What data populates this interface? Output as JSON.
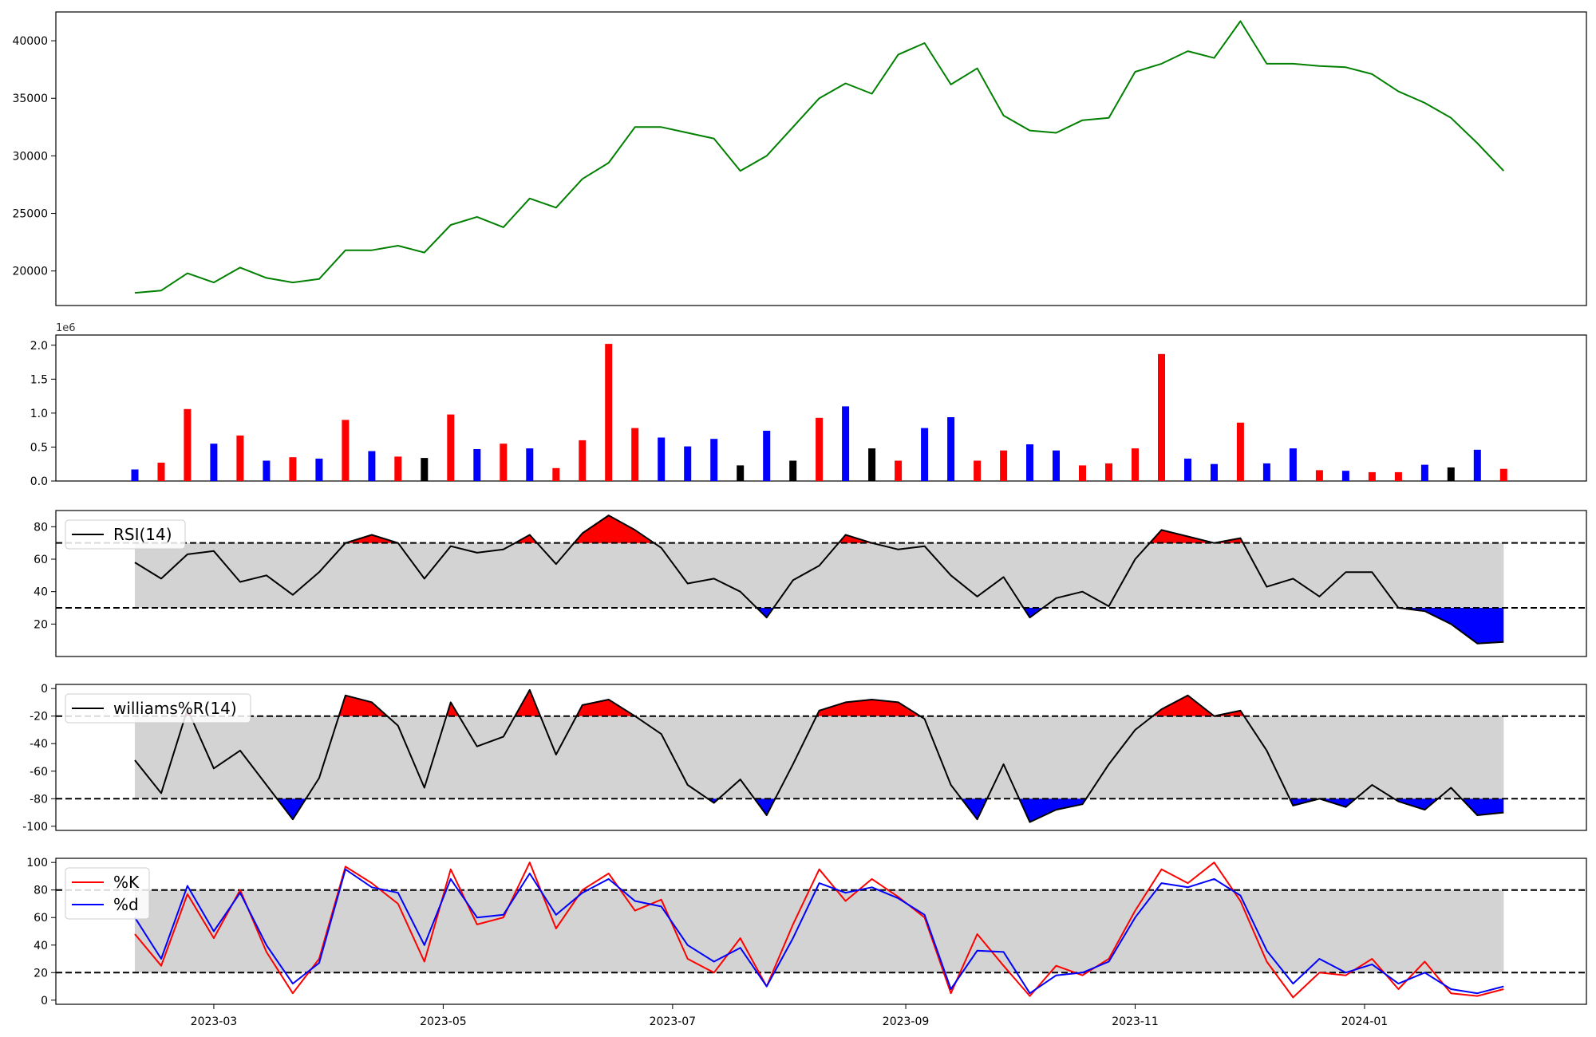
{
  "figure": {
    "x_ticks": [
      "2023-03",
      "2023-05",
      "2023-07",
      "2023-09",
      "2023-11",
      "2024-01"
    ],
    "volume_scale_label": "1e6"
  },
  "chart_data": [
    {
      "type": "line",
      "panel": "price",
      "color": "#008000",
      "xlim": [
        "2023-01-18",
        "2024-02-29"
      ],
      "ylim": [
        17000,
        42500
      ],
      "y_ticks": [
        20000,
        25000,
        30000,
        35000,
        40000
      ],
      "x": [
        "2023-02-08",
        "2023-02-15",
        "2023-02-22",
        "2023-03-01",
        "2023-03-08",
        "2023-03-15",
        "2023-03-22",
        "2023-03-29",
        "2023-04-05",
        "2023-04-12",
        "2023-04-19",
        "2023-04-26",
        "2023-05-03",
        "2023-05-10",
        "2023-05-17",
        "2023-05-24",
        "2023-05-31",
        "2023-06-07",
        "2023-06-14",
        "2023-06-21",
        "2023-06-28",
        "2023-07-05",
        "2023-07-12",
        "2023-07-19",
        "2023-07-26",
        "2023-08-02",
        "2023-08-09",
        "2023-08-16",
        "2023-08-23",
        "2023-08-30",
        "2023-09-06",
        "2023-09-13",
        "2023-09-20",
        "2023-09-27",
        "2023-10-04",
        "2023-10-11",
        "2023-10-18",
        "2023-10-25",
        "2023-11-01",
        "2023-11-08",
        "2023-11-15",
        "2023-11-22",
        "2023-11-29",
        "2023-12-06",
        "2023-12-13",
        "2023-12-20",
        "2023-12-27",
        "2024-01-03",
        "2024-01-10",
        "2024-01-17",
        "2024-01-24",
        "2024-01-31",
        "2024-02-07"
      ],
      "values": [
        18100,
        18300,
        19800,
        19000,
        20300,
        19400,
        19000,
        19300,
        21800,
        21800,
        22200,
        21600,
        24000,
        24700,
        23800,
        26300,
        25500,
        28000,
        29400,
        32500,
        32500,
        32000,
        31500,
        28700,
        30000,
        32500,
        35000,
        36300,
        35400,
        38800,
        39800,
        36200,
        37600,
        33500,
        32200,
        32000,
        33100,
        33300,
        37300,
        38000,
        39100,
        38500,
        41700,
        38000,
        38000,
        37800,
        37700,
        37100,
        35600,
        34600,
        33300,
        31100,
        28700
      ]
    },
    {
      "type": "bar",
      "panel": "volume",
      "ylim": [
        0,
        2150000
      ],
      "y_ticks": [
        0.0,
        0.5,
        1.0,
        1.5,
        2.0
      ],
      "colors": {
        "up": "#ff0000",
        "down": "#0000ff",
        "flat": "#000000"
      },
      "x": [
        "2023-02-08",
        "2023-02-15",
        "2023-02-22",
        "2023-03-01",
        "2023-03-08",
        "2023-03-15",
        "2023-03-22",
        "2023-03-29",
        "2023-04-05",
        "2023-04-12",
        "2023-04-19",
        "2023-04-26",
        "2023-05-03",
        "2023-05-10",
        "2023-05-17",
        "2023-05-24",
        "2023-05-31",
        "2023-06-07",
        "2023-06-14",
        "2023-06-21",
        "2023-06-28",
        "2023-07-05",
        "2023-07-12",
        "2023-07-19",
        "2023-07-26",
        "2023-08-02",
        "2023-08-09",
        "2023-08-16",
        "2023-08-23",
        "2023-08-30",
        "2023-09-06",
        "2023-09-13",
        "2023-09-20",
        "2023-09-27",
        "2023-10-04",
        "2023-10-11",
        "2023-10-18",
        "2023-10-25",
        "2023-11-01",
        "2023-11-08",
        "2023-11-15",
        "2023-11-22",
        "2023-11-29",
        "2023-12-06",
        "2023-12-13",
        "2023-12-20",
        "2023-12-27",
        "2024-01-03",
        "2024-01-10",
        "2024-01-17",
        "2024-01-24",
        "2024-01-31",
        "2024-02-07"
      ],
      "values": [
        170000,
        270000,
        1060000,
        550000,
        670000,
        300000,
        350000,
        330000,
        900000,
        440000,
        360000,
        340000,
        980000,
        470000,
        550000,
        480000,
        190000,
        600000,
        2020000,
        780000,
        640000,
        510000,
        620000,
        230000,
        740000,
        300000,
        930000,
        1100000,
        480000,
        300000,
        780000,
        940000,
        300000,
        450000,
        540000,
        450000,
        230000,
        260000,
        480000,
        1870000,
        330000,
        250000,
        860000,
        260000,
        480000,
        160000,
        150000,
        130000,
        130000,
        240000,
        200000,
        460000,
        180000
      ],
      "directions": [
        "down",
        "up",
        "up",
        "down",
        "up",
        "down",
        "up",
        "down",
        "up",
        "down",
        "up",
        "flat",
        "up",
        "down",
        "up",
        "down",
        "up",
        "up",
        "up",
        "up",
        "down",
        "down",
        "down",
        "flat",
        "down",
        "flat",
        "up",
        "down",
        "flat",
        "up",
        "down",
        "down",
        "up",
        "up",
        "down",
        "down",
        "up",
        "up",
        "up",
        "up",
        "down",
        "down",
        "up",
        "down",
        "down",
        "up",
        "down",
        "up",
        "up",
        "down",
        "flat",
        "down",
        "up"
      ]
    },
    {
      "type": "line",
      "panel": "rsi",
      "series": [
        {
          "name": "RSI(14)",
          "color": "#000000"
        }
      ],
      "ylim": [
        0,
        90
      ],
      "y_ticks": [
        20,
        40,
        60,
        80
      ],
      "thresholds": [
        30,
        70
      ],
      "legend": "upper-left",
      "x": [
        "2023-02-08",
        "2023-02-15",
        "2023-02-22",
        "2023-03-01",
        "2023-03-08",
        "2023-03-15",
        "2023-03-22",
        "2023-03-29",
        "2023-04-05",
        "2023-04-12",
        "2023-04-19",
        "2023-04-26",
        "2023-05-03",
        "2023-05-10",
        "2023-05-17",
        "2023-05-24",
        "2023-05-31",
        "2023-06-07",
        "2023-06-14",
        "2023-06-21",
        "2023-06-28",
        "2023-07-05",
        "2023-07-12",
        "2023-07-19",
        "2023-07-26",
        "2023-08-02",
        "2023-08-09",
        "2023-08-16",
        "2023-08-23",
        "2023-08-30",
        "2023-09-06",
        "2023-09-13",
        "2023-09-20",
        "2023-09-27",
        "2023-10-04",
        "2023-10-11",
        "2023-10-18",
        "2023-10-25",
        "2023-11-01",
        "2023-11-08",
        "2023-11-15",
        "2023-11-22",
        "2023-11-29",
        "2023-12-06",
        "2023-12-13",
        "2023-12-20",
        "2023-12-27",
        "2024-01-03",
        "2024-01-10",
        "2024-01-17",
        "2024-01-24",
        "2024-01-31",
        "2024-02-07"
      ],
      "values": [
        58,
        48,
        63,
        65,
        46,
        50,
        38,
        52,
        70,
        75,
        70,
        48,
        68,
        64,
        66,
        75,
        57,
        76,
        87,
        78,
        67,
        45,
        48,
        40,
        24,
        47,
        56,
        75,
        70,
        66,
        68,
        50,
        37,
        49,
        24,
        36,
        40,
        31,
        60,
        78,
        74,
        70,
        73,
        43,
        48,
        37,
        52,
        52,
        30,
        28,
        20,
        8,
        9
      ]
    },
    {
      "type": "line",
      "panel": "williams",
      "series": [
        {
          "name": "williams%R(14)",
          "color": "#000000"
        }
      ],
      "ylim": [
        -103,
        3
      ],
      "y_ticks": [
        0,
        -20,
        -40,
        -60,
        -80,
        -100
      ],
      "thresholds": [
        -80,
        -20
      ],
      "legend": "upper-left",
      "x": [
        "2023-02-08",
        "2023-02-15",
        "2023-02-22",
        "2023-03-01",
        "2023-03-08",
        "2023-03-15",
        "2023-03-22",
        "2023-03-29",
        "2023-04-05",
        "2023-04-12",
        "2023-04-19",
        "2023-04-26",
        "2023-05-03",
        "2023-05-10",
        "2023-05-17",
        "2023-05-24",
        "2023-05-31",
        "2023-06-07",
        "2023-06-14",
        "2023-06-21",
        "2023-06-28",
        "2023-07-05",
        "2023-07-12",
        "2023-07-19",
        "2023-07-26",
        "2023-08-02",
        "2023-08-09",
        "2023-08-16",
        "2023-08-23",
        "2023-08-30",
        "2023-09-06",
        "2023-09-13",
        "2023-09-20",
        "2023-09-27",
        "2023-10-04",
        "2023-10-11",
        "2023-10-18",
        "2023-10-25",
        "2023-11-01",
        "2023-11-08",
        "2023-11-15",
        "2023-11-22",
        "2023-11-29",
        "2023-12-06",
        "2023-12-13",
        "2023-12-20",
        "2023-12-27",
        "2024-01-03",
        "2024-01-10",
        "2024-01-17",
        "2024-01-24",
        "2024-01-31",
        "2024-02-07"
      ],
      "values": [
        -52,
        -76,
        -15,
        -58,
        -45,
        -70,
        -95,
        -65,
        -5,
        -10,
        -27,
        -72,
        -10,
        -42,
        -35,
        -1,
        -48,
        -12,
        -8,
        -20,
        -33,
        -70,
        -83,
        -66,
        -92,
        -55,
        -16,
        -10,
        -8,
        -10,
        -22,
        -70,
        -95,
        -55,
        -97,
        -88,
        -84,
        -55,
        -30,
        -15,
        -5,
        -20,
        -16,
        -45,
        -85,
        -80,
        -86,
        -70,
        -82,
        -88,
        -72,
        -92,
        -90
      ]
    },
    {
      "type": "line",
      "panel": "stochastic",
      "series": [
        {
          "name": "%K",
          "color": "#ff0000",
          "values": [
            48,
            25,
            77,
            45,
            80,
            35,
            5,
            30,
            97,
            85,
            70,
            28,
            95,
            55,
            60,
            100,
            52,
            80,
            92,
            65,
            73,
            30,
            20,
            45,
            10,
            55,
            95,
            72,
            88,
            75,
            60,
            5,
            48,
            25,
            3,
            25,
            18,
            30,
            65,
            95,
            85,
            100,
            72,
            28,
            2,
            20,
            18,
            30,
            8,
            28,
            5,
            3,
            8
          ]
        },
        {
          "name": "%d",
          "color": "#0000ff",
          "values": [
            60,
            30,
            83,
            50,
            78,
            40,
            12,
            27,
            95,
            82,
            78,
            40,
            88,
            60,
            62,
            92,
            62,
            78,
            88,
            72,
            68,
            40,
            28,
            38,
            10,
            45,
            85,
            78,
            82,
            74,
            62,
            8,
            36,
            35,
            5,
            18,
            20,
            28,
            60,
            85,
            82,
            88,
            76,
            36,
            12,
            30,
            20,
            26,
            12,
            20,
            8,
            5,
            10
          ]
        }
      ],
      "ylim": [
        -3,
        103
      ],
      "y_ticks": [
        0,
        20,
        40,
        60,
        80,
        100
      ],
      "thresholds": [
        20,
        80
      ],
      "legend": "upper-left",
      "x": [
        "2023-02-08",
        "2023-02-15",
        "2023-02-22",
        "2023-03-01",
        "2023-03-08",
        "2023-03-15",
        "2023-03-22",
        "2023-03-29",
        "2023-04-05",
        "2023-04-12",
        "2023-04-19",
        "2023-04-26",
        "2023-05-03",
        "2023-05-10",
        "2023-05-17",
        "2023-05-24",
        "2023-05-31",
        "2023-06-07",
        "2023-06-14",
        "2023-06-21",
        "2023-06-28",
        "2023-07-05",
        "2023-07-12",
        "2023-07-19",
        "2023-07-26",
        "2023-08-02",
        "2023-08-09",
        "2023-08-16",
        "2023-08-23",
        "2023-08-30",
        "2023-09-06",
        "2023-09-13",
        "2023-09-20",
        "2023-09-27",
        "2023-10-04",
        "2023-10-11",
        "2023-10-18",
        "2023-10-25",
        "2023-11-01",
        "2023-11-08",
        "2023-11-15",
        "2023-11-22",
        "2023-11-29",
        "2023-12-06",
        "2023-12-13",
        "2023-12-20",
        "2023-12-27",
        "2024-01-03",
        "2024-01-10",
        "2024-01-17",
        "2024-01-24",
        "2024-01-31",
        "2024-02-07"
      ]
    }
  ]
}
